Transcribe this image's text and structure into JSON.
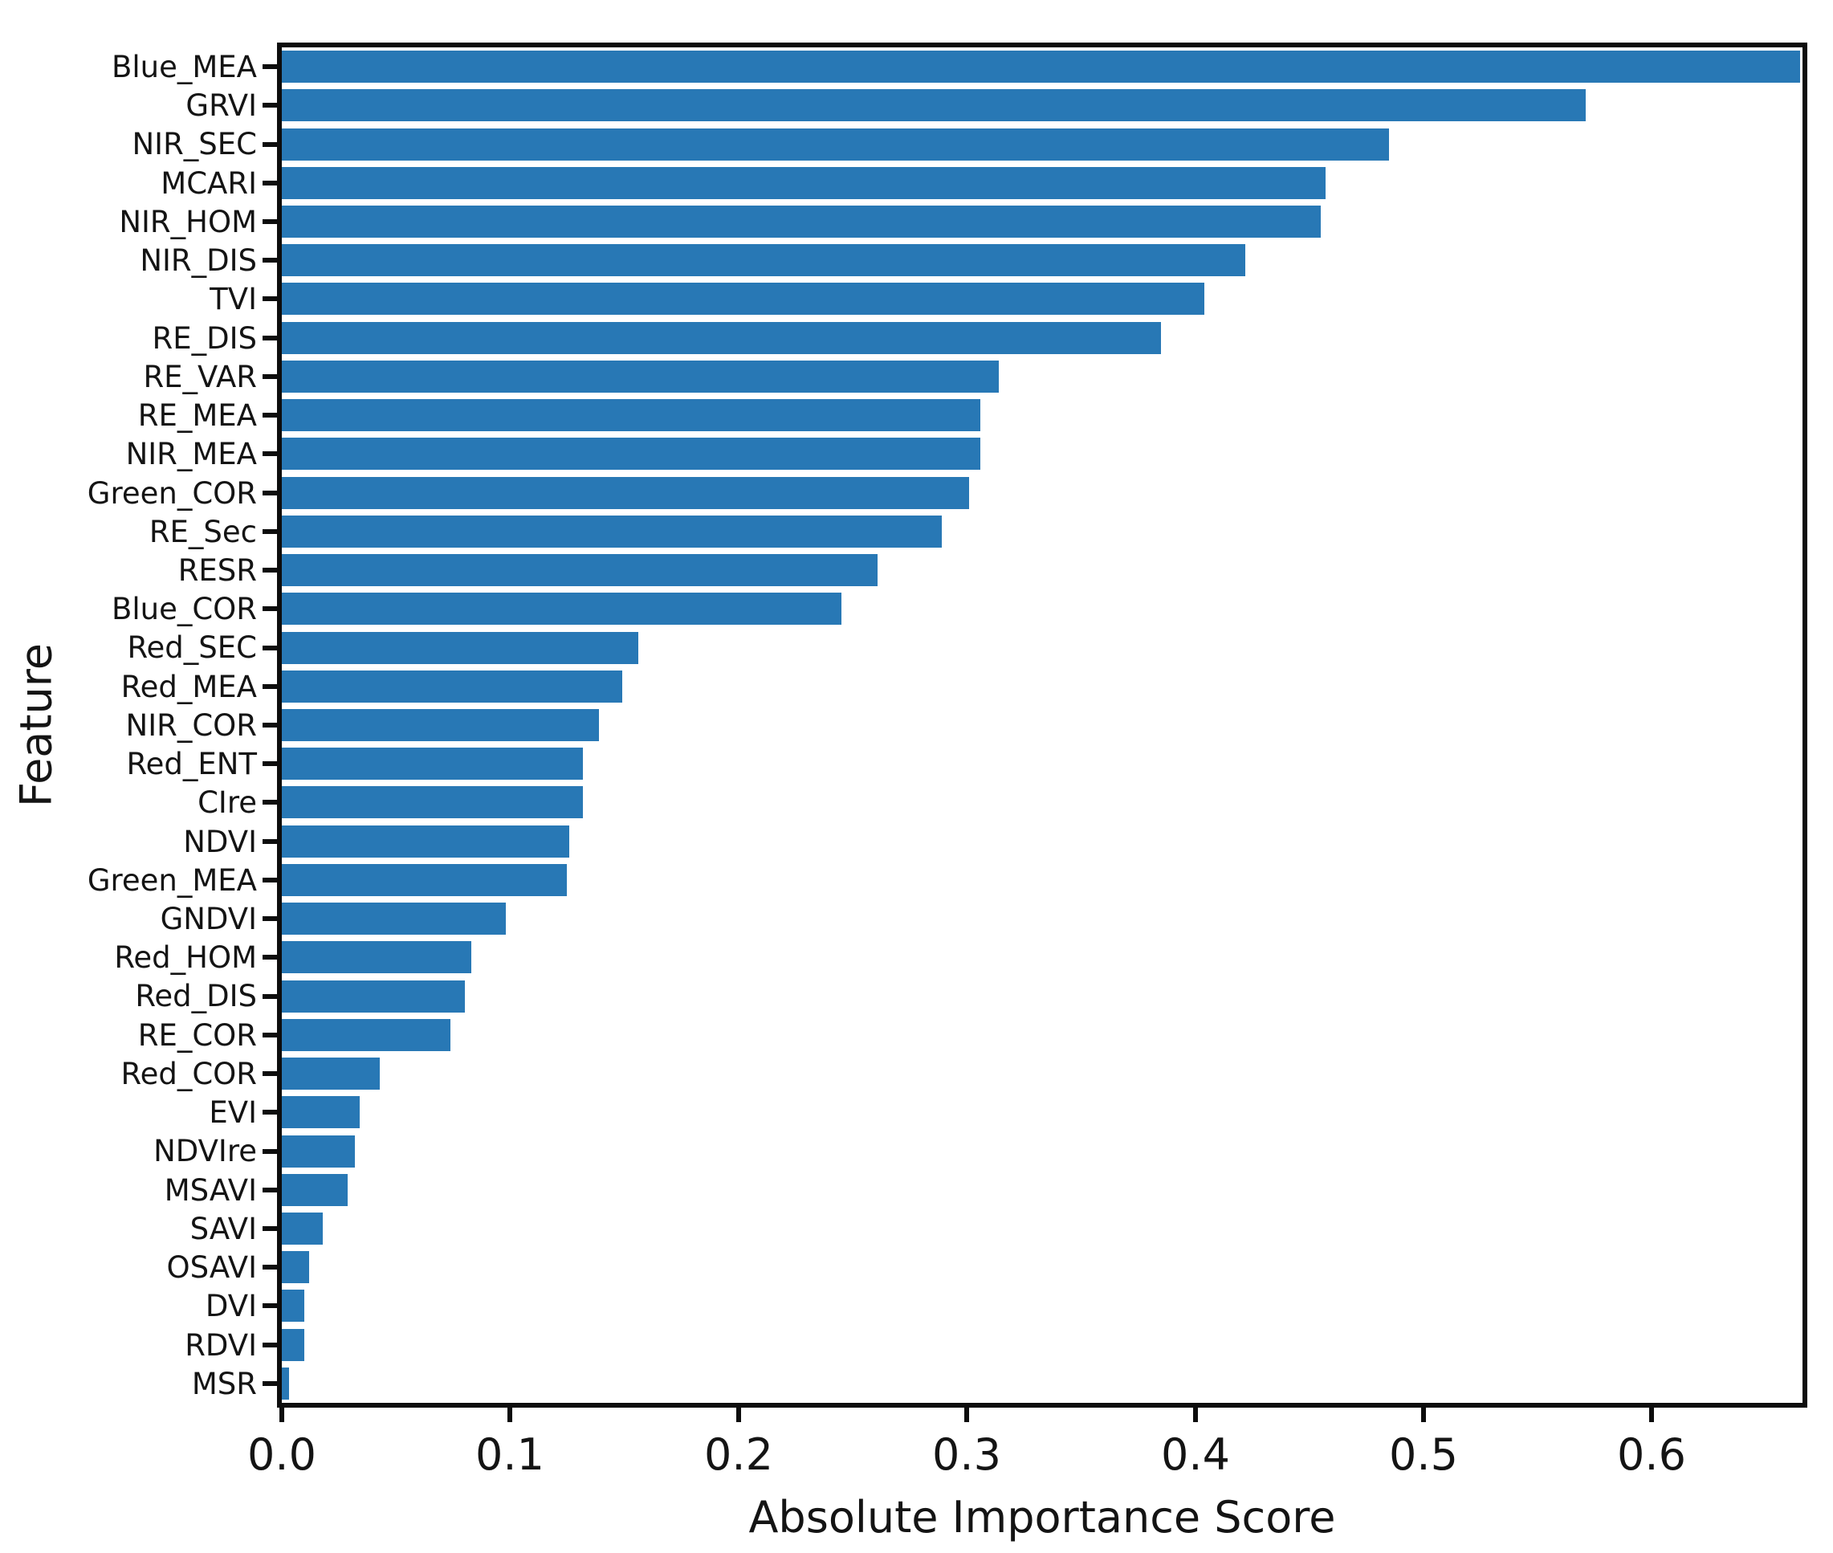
{
  "figure": {
    "background_color": "#ffffff",
    "bar_color": "#2878b5",
    "frame_color": "#0d0d0d",
    "text_color": "#141414"
  },
  "chart_data": {
    "type": "bar",
    "orientation": "horizontal",
    "title": "",
    "xlabel": "Absolute Importance Score",
    "ylabel": "Feature",
    "xlim": [
      0,
      0.666
    ],
    "grid": false,
    "legend": "none",
    "x_tick_labels": [
      "0.0",
      "0.1",
      "0.2",
      "0.3",
      "0.4",
      "0.5",
      "0.6"
    ],
    "x_tick_values": [
      0.0,
      0.1,
      0.2,
      0.3,
      0.4,
      0.5,
      0.6
    ],
    "categories": [
      "Blue_MEA",
      "GRVI",
      "NIR_SEC",
      "MCARI",
      "NIR_HOM",
      "NIR_DIS",
      "TVI",
      "RE_DIS",
      "RE_VAR",
      "RE_MEA",
      "NIR_MEA",
      "Green_COR",
      "RE_Sec",
      "RESR",
      "Blue_COR",
      "Red_SEC",
      "Red_MEA",
      "NIR_COR",
      "Red_ENT",
      "CIre",
      "NDVI",
      "Green_MEA",
      "GNDVI",
      "Red_HOM",
      "Red_DIS",
      "RE_COR",
      "Red_COR",
      "EVI",
      "NDVIre",
      "MSAVI",
      "SAVI",
      "OSAVI",
      "DVI",
      "RDVI",
      "MSR"
    ],
    "values": [
      0.665,
      0.571,
      0.485,
      0.457,
      0.455,
      0.422,
      0.404,
      0.385,
      0.314,
      0.306,
      0.306,
      0.301,
      0.289,
      0.261,
      0.245,
      0.156,
      0.149,
      0.139,
      0.132,
      0.132,
      0.126,
      0.125,
      0.098,
      0.083,
      0.08,
      0.074,
      0.043,
      0.034,
      0.032,
      0.029,
      0.018,
      0.012,
      0.01,
      0.01,
      0.003
    ]
  }
}
